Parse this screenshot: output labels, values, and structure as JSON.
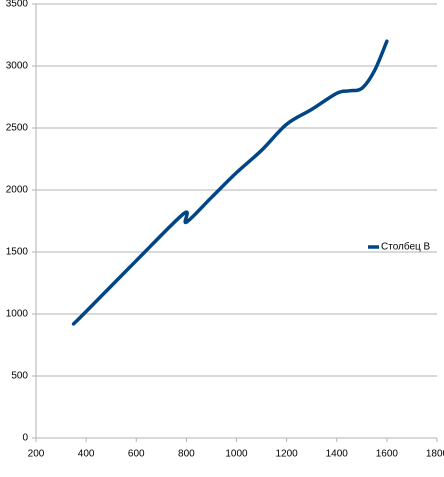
{
  "chart_data": {
    "type": "line",
    "x": [
      350,
      400,
      600,
      790,
      800,
      900,
      1000,
      1100,
      1200,
      1300,
      1400,
      1450,
      1500,
      1550,
      1600
    ],
    "series": [
      {
        "name": "Столбец B",
        "color": "#004586",
        "values": [
          920,
          1020,
          1430,
          1810,
          1740,
          1940,
          2140,
          2320,
          2530,
          2650,
          2780,
          2800,
          2820,
          2960,
          3200
        ]
      }
    ],
    "xlim": [
      200,
      1800
    ],
    "xticks": [
      200,
      400,
      600,
      800,
      1000,
      1200,
      1400,
      1600,
      1800
    ],
    "ylim": [
      0,
      3500
    ],
    "yticks": [
      0,
      500,
      1000,
      1500,
      2000,
      2500,
      3000,
      3500
    ],
    "grid": true,
    "legend": "right"
  }
}
